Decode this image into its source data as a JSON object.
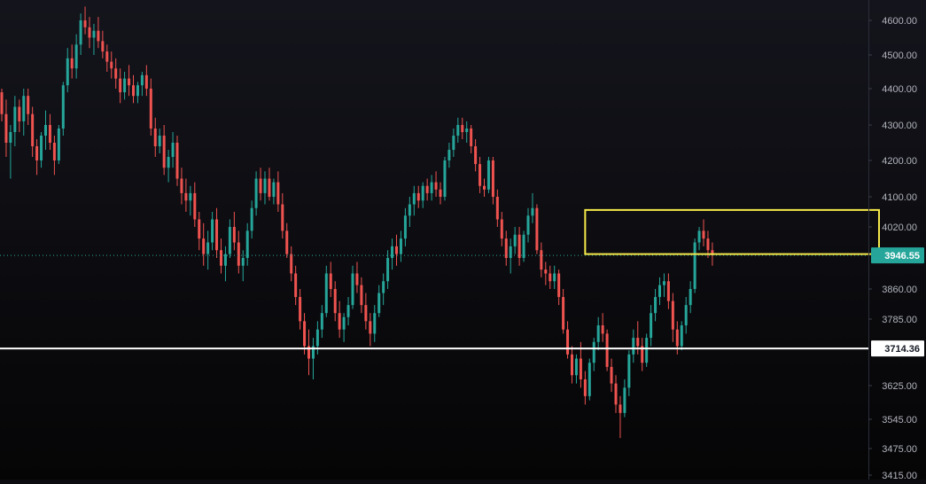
{
  "chart_data": {
    "type": "candlestick",
    "y_axis_ticks": [
      "4600.00",
      "4500.00",
      "4400.00",
      "4300.00",
      "4200.00",
      "4100.00",
      "4020.00",
      "3860.00",
      "3785.00",
      "3625.00",
      "3545.00",
      "3475.00",
      "3415.00"
    ],
    "ylim": [
      3415,
      4640
    ],
    "last_price": {
      "label": "3946.55",
      "value": 3946.55,
      "color": "#26a69a"
    },
    "horizontal_line": {
      "label": "3714.36",
      "value": 3714.36,
      "color": "#ffffff"
    },
    "zone": {
      "x_start": 133,
      "x_end": 200,
      "y_low": 3950,
      "y_high": 4065,
      "color": "#f5e94a"
    },
    "up_color": "#26a69a",
    "down_color": "#ef5350",
    "ohlc": [
      [
        4390,
        4400,
        4310,
        4330
      ],
      [
        4330,
        4370,
        4210,
        4250
      ],
      [
        4250,
        4300,
        4150,
        4280
      ],
      [
        4280,
        4380,
        4240,
        4350
      ],
      [
        4350,
        4370,
        4280,
        4310
      ],
      [
        4310,
        4400,
        4270,
        4380
      ],
      [
        4380,
        4400,
        4300,
        4330
      ],
      [
        4330,
        4350,
        4210,
        4240
      ],
      [
        4240,
        4260,
        4160,
        4200
      ],
      [
        4200,
        4280,
        4180,
        4270
      ],
      [
        4270,
        4340,
        4230,
        4300
      ],
      [
        4300,
        4330,
        4230,
        4250
      ],
      [
        4250,
        4270,
        4160,
        4200
      ],
      [
        4200,
        4300,
        4190,
        4290
      ],
      [
        4290,
        4420,
        4270,
        4410
      ],
      [
        4410,
        4520,
        4390,
        4490
      ],
      [
        4490,
        4530,
        4430,
        4460
      ],
      [
        4460,
        4560,
        4430,
        4530
      ],
      [
        4530,
        4620,
        4500,
        4600
      ],
      [
        4600,
        4640,
        4560,
        4580
      ],
      [
        4580,
        4610,
        4520,
        4550
      ],
      [
        4550,
        4590,
        4500,
        4570
      ],
      [
        4570,
        4610,
        4520,
        4540
      ],
      [
        4540,
        4570,
        4490,
        4510
      ],
      [
        4510,
        4530,
        4450,
        4480
      ],
      [
        4480,
        4510,
        4430,
        4460
      ],
      [
        4460,
        4490,
        4400,
        4430
      ],
      [
        4430,
        4460,
        4360,
        4390
      ],
      [
        4390,
        4450,
        4370,
        4430
      ],
      [
        4430,
        4470,
        4380,
        4410
      ],
      [
        4410,
        4440,
        4360,
        4380
      ],
      [
        4380,
        4420,
        4360,
        4410
      ],
      [
        4410,
        4450,
        4380,
        4440
      ],
      [
        4440,
        4470,
        4380,
        4400
      ],
      [
        4400,
        4430,
        4270,
        4290
      ],
      [
        4290,
        4320,
        4210,
        4240
      ],
      [
        4240,
        4290,
        4220,
        4270
      ],
      [
        4270,
        4300,
        4160,
        4180
      ],
      [
        4180,
        4230,
        4140,
        4210
      ],
      [
        4210,
        4280,
        4180,
        4250
      ],
      [
        4250,
        4270,
        4130,
        4150
      ],
      [
        4150,
        4180,
        4080,
        4110
      ],
      [
        4110,
        4150,
        4060,
        4090
      ],
      [
        4090,
        4130,
        4050,
        4110
      ],
      [
        4110,
        4140,
        4020,
        4040
      ],
      [
        4040,
        4060,
        3960,
        3990
      ],
      [
        3990,
        4030,
        3920,
        3950
      ],
      [
        3950,
        4010,
        3910,
        3980
      ],
      [
        3980,
        4060,
        3960,
        4040
      ],
      [
        4040,
        4070,
        3940,
        3960
      ],
      [
        3960,
        3990,
        3900,
        3920
      ],
      [
        3920,
        3970,
        3880,
        3950
      ],
      [
        3950,
        4040,
        3940,
        4020
      ],
      [
        4020,
        4060,
        3960,
        3980
      ],
      [
        3980,
        4010,
        3900,
        3920
      ],
      [
        3920,
        3960,
        3880,
        3940
      ],
      [
        3940,
        4030,
        3920,
        4010
      ],
      [
        4010,
        4090,
        3990,
        4070
      ],
      [
        4070,
        4170,
        4050,
        4150
      ],
      [
        4150,
        4180,
        4090,
        4110
      ],
      [
        4110,
        4170,
        4080,
        4150
      ],
      [
        4150,
        4180,
        4090,
        4100
      ],
      [
        4100,
        4150,
        4080,
        4140
      ],
      [
        4140,
        4170,
        4060,
        4080
      ],
      [
        4080,
        4110,
        3990,
        4010
      ],
      [
        4010,
        4030,
        3940,
        3950
      ],
      [
        3950,
        3970,
        3880,
        3900
      ],
      [
        3900,
        3920,
        3820,
        3840
      ],
      [
        3840,
        3860,
        3760,
        3780
      ],
      [
        3780,
        3800,
        3700,
        3720
      ],
      [
        3720,
        3760,
        3650,
        3690
      ],
      [
        3690,
        3740,
        3640,
        3720
      ],
      [
        3720,
        3780,
        3700,
        3760
      ],
      [
        3760,
        3820,
        3740,
        3800
      ],
      [
        3800,
        3920,
        3790,
        3900
      ],
      [
        3900,
        3930,
        3840,
        3860
      ],
      [
        3860,
        3880,
        3780,
        3800
      ],
      [
        3800,
        3830,
        3740,
        3760
      ],
      [
        3760,
        3800,
        3730,
        3790
      ],
      [
        3790,
        3840,
        3770,
        3820
      ],
      [
        3820,
        3920,
        3810,
        3900
      ],
      [
        3900,
        3930,
        3850,
        3870
      ],
      [
        3870,
        3890,
        3800,
        3820
      ],
      [
        3820,
        3850,
        3760,
        3780
      ],
      [
        3780,
        3800,
        3720,
        3750
      ],
      [
        3750,
        3820,
        3730,
        3800
      ],
      [
        3800,
        3870,
        3790,
        3850
      ],
      [
        3850,
        3900,
        3820,
        3880
      ],
      [
        3880,
        3960,
        3860,
        3940
      ],
      [
        3940,
        3990,
        3910,
        3970
      ],
      [
        3970,
        4000,
        3920,
        3950
      ],
      [
        3950,
        4010,
        3930,
        3990
      ],
      [
        3990,
        4070,
        3970,
        4050
      ],
      [
        4050,
        4100,
        4020,
        4080
      ],
      [
        4080,
        4130,
        4050,
        4110
      ],
      [
        4110,
        4130,
        4070,
        4090
      ],
      [
        4090,
        4140,
        4070,
        4130
      ],
      [
        4130,
        4150,
        4090,
        4110
      ],
      [
        4110,
        4160,
        4090,
        4140
      ],
      [
        4140,
        4170,
        4100,
        4120
      ],
      [
        4120,
        4140,
        4080,
        4100
      ],
      [
        4100,
        4210,
        4090,
        4200
      ],
      [
        4200,
        4250,
        4180,
        4230
      ],
      [
        4230,
        4290,
        4210,
        4270
      ],
      [
        4270,
        4320,
        4250,
        4300
      ],
      [
        4300,
        4320,
        4260,
        4280
      ],
      [
        4280,
        4310,
        4250,
        4290
      ],
      [
        4290,
        4300,
        4220,
        4240
      ],
      [
        4240,
        4260,
        4170,
        4190
      ],
      [
        4190,
        4210,
        4110,
        4130
      ],
      [
        4130,
        4150,
        4100,
        4120
      ],
      [
        4120,
        4210,
        4110,
        4200
      ],
      [
        4200,
        4210,
        4080,
        4100
      ],
      [
        4100,
        4120,
        4020,
        4040
      ],
      [
        4040,
        4060,
        3970,
        3990
      ],
      [
        3990,
        4010,
        3920,
        3940
      ],
      [
        3940,
        3990,
        3900,
        3970
      ],
      [
        3970,
        4020,
        3950,
        4000
      ],
      [
        4000,
        4020,
        3920,
        3940
      ],
      [
        3940,
        4010,
        3930,
        4000
      ],
      [
        4000,
        4070,
        3980,
        4050
      ],
      [
        4050,
        4110,
        4030,
        4070
      ],
      [
        4070,
        4080,
        3950,
        3960
      ],
      [
        3960,
        3980,
        3890,
        3910
      ],
      [
        3910,
        3930,
        3870,
        3900
      ],
      [
        3900,
        3920,
        3860,
        3880
      ],
      [
        3880,
        3920,
        3860,
        3900
      ],
      [
        3900,
        3910,
        3820,
        3840
      ],
      [
        3840,
        3860,
        3750,
        3760
      ],
      [
        3760,
        3780,
        3690,
        3700
      ],
      [
        3700,
        3720,
        3630,
        3650
      ],
      [
        3650,
        3700,
        3630,
        3690
      ],
      [
        3690,
        3730,
        3620,
        3640
      ],
      [
        3640,
        3660,
        3580,
        3600
      ],
      [
        3600,
        3690,
        3590,
        3680
      ],
      [
        3680,
        3740,
        3660,
        3730
      ],
      [
        3730,
        3790,
        3710,
        3770
      ],
      [
        3770,
        3800,
        3730,
        3750
      ],
      [
        3750,
        3760,
        3660,
        3670
      ],
      [
        3670,
        3690,
        3610,
        3630
      ],
      [
        3630,
        3650,
        3560,
        3580
      ],
      [
        3580,
        3600,
        3500,
        3560
      ],
      [
        3560,
        3640,
        3550,
        3620
      ],
      [
        3620,
        3710,
        3600,
        3700
      ],
      [
        3700,
        3760,
        3680,
        3740
      ],
      [
        3740,
        3780,
        3700,
        3720
      ],
      [
        3720,
        3740,
        3660,
        3680
      ],
      [
        3680,
        3750,
        3670,
        3740
      ],
      [
        3740,
        3820,
        3720,
        3800
      ],
      [
        3800,
        3860,
        3780,
        3840
      ],
      [
        3840,
        3890,
        3820,
        3870
      ],
      [
        3870,
        3900,
        3840,
        3880
      ],
      [
        3880,
        3900,
        3810,
        3830
      ],
      [
        3830,
        3850,
        3730,
        3760
      ],
      [
        3760,
        3780,
        3700,
        3720
      ],
      [
        3720,
        3780,
        3710,
        3770
      ],
      [
        3770,
        3840,
        3750,
        3820
      ],
      [
        3820,
        3880,
        3800,
        3860
      ],
      [
        3860,
        3990,
        3850,
        3980
      ],
      [
        3980,
        4020,
        3960,
        4010
      ],
      [
        4010,
        4040,
        3970,
        3990
      ],
      [
        3990,
        4010,
        3940,
        3960
      ],
      [
        3960,
        3980,
        3920,
        3947
      ]
    ]
  }
}
